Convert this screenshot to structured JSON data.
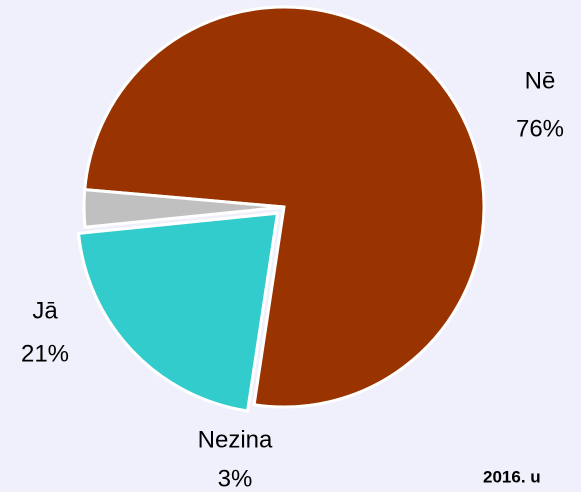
{
  "chart_data": {
    "type": "pie",
    "categories": [
      "Nē",
      "Jā",
      "Nezina"
    ],
    "values": [
      76,
      21,
      3
    ],
    "value_labels": [
      "76%",
      "21%",
      "3%"
    ],
    "colors": [
      "#993300",
      "#33cccc",
      "#c0c0c0"
    ],
    "annotation": "2016. u"
  }
}
